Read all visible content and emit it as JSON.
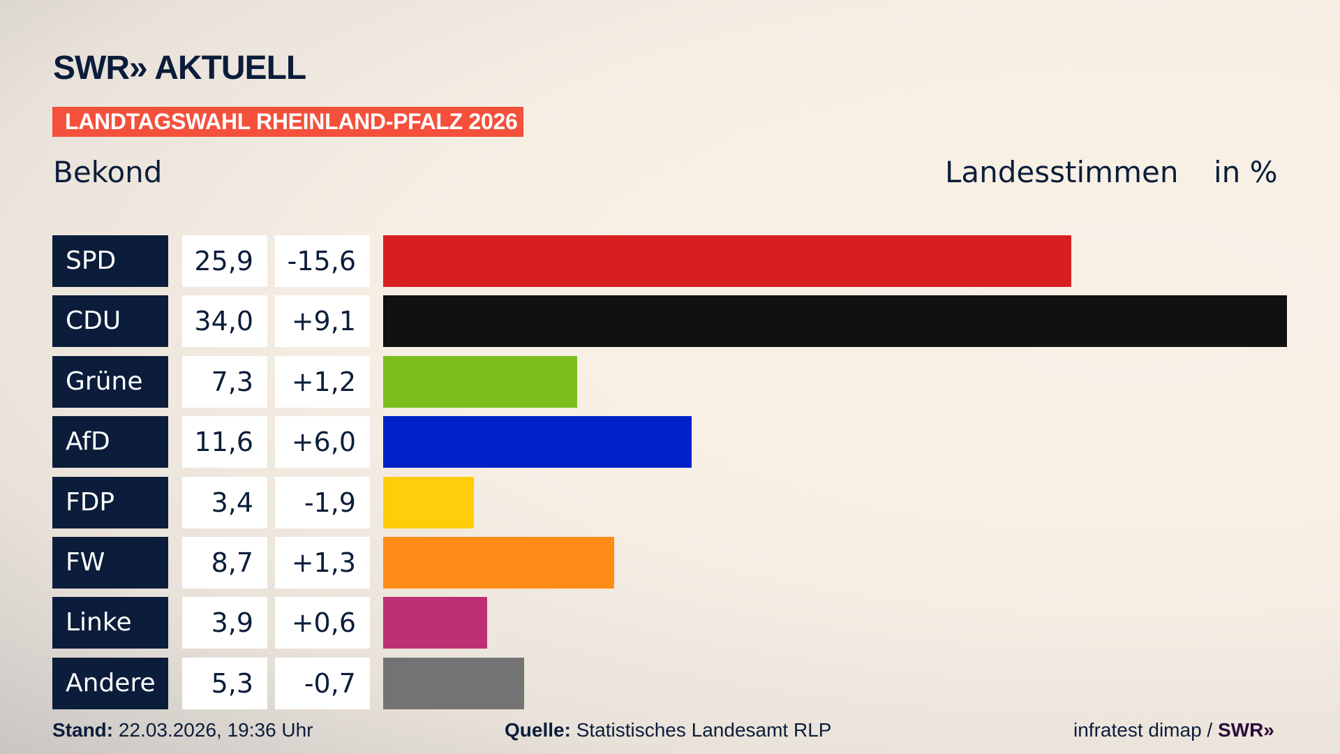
{
  "header": {
    "logo": "SWR» AKTUELL",
    "banner": "LANDTAGSWAHL RHEINLAND-PFALZ 2026",
    "region": "Bekond",
    "measure": "Landesstimmen",
    "unit": "in %"
  },
  "chart_data": {
    "type": "bar",
    "orientation": "horizontal",
    "categories": [
      "SPD",
      "CDU",
      "Grüne",
      "AfD",
      "FDP",
      "FW",
      "Linke",
      "Andere"
    ],
    "values": [
      25.9,
      34.0,
      7.3,
      11.6,
      3.4,
      8.7,
      3.9,
      5.3
    ],
    "value_labels": [
      "25,9",
      "34,0",
      "7,3",
      "11,6",
      "3,4",
      "8,7",
      "3,9",
      "5,3"
    ],
    "change_labels": [
      "-15,6",
      "+9,1",
      "+1,2",
      "+6,0",
      "-1,9",
      "+1,3",
      "+0,6",
      "-0,7"
    ],
    "changes": [
      -15.6,
      9.1,
      1.2,
      6.0,
      -1.9,
      1.3,
      0.6,
      -0.7
    ],
    "colors": [
      "#d81f20",
      "#111111",
      "#7cbd1e",
      "#0021c8",
      "#ffcd0a",
      "#ff8c17",
      "#bd3075",
      "#737374"
    ],
    "xlim": [
      0,
      34.0
    ],
    "grid": false
  },
  "footer": {
    "stand_label": "Stand:",
    "stand_value": "22.03.2026, 19:36 Uhr",
    "source_label": "Quelle:",
    "source_value": "Statistisches Landesamt RLP",
    "credit": "infratest dimap /",
    "credit_logo": "SWR»"
  }
}
